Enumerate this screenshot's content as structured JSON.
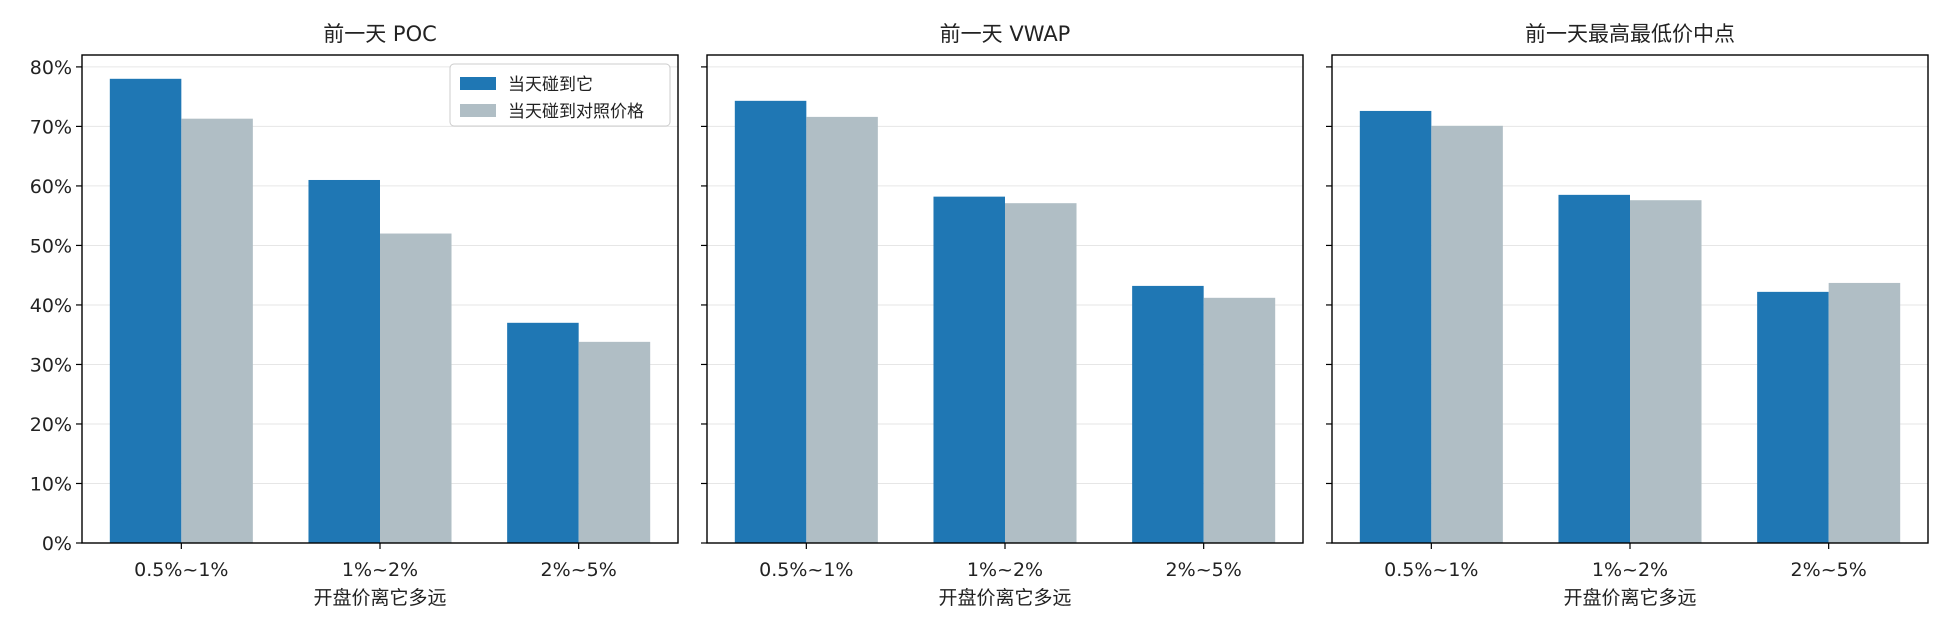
{
  "colors": {
    "series_0": "#1f77b4",
    "series_1": "#b0bec5",
    "grid": "#e6e6e6",
    "axis": "#000000"
  },
  "legend": {
    "placement": "upper right of first panel"
  },
  "chart_data": [
    {
      "type": "bar",
      "title": "前一天 POC",
      "xlabel": "开盘价离它多远",
      "ylabel": "",
      "categories": [
        "0.5%~1%",
        "1%~2%",
        "2%~5%"
      ],
      "series": [
        {
          "name": "当天碰到它",
          "values": [
            78,
            61,
            37
          ]
        },
        {
          "name": "当天碰到对照价格",
          "values": [
            71.3,
            52,
            33.8
          ]
        }
      ],
      "yticks": [
        "0%",
        "10%",
        "20%",
        "30%",
        "40%",
        "50%",
        "60%",
        "70%",
        "80%"
      ],
      "ylim": [
        0,
        82
      ],
      "grid": true,
      "show_legend": true
    },
    {
      "type": "bar",
      "title": "前一天 VWAP",
      "xlabel": "开盘价离它多远",
      "ylabel": "",
      "categories": [
        "0.5%~1%",
        "1%~2%",
        "2%~5%"
      ],
      "series": [
        {
          "name": "当天碰到它",
          "values": [
            74.3,
            58.2,
            43.2
          ]
        },
        {
          "name": "当天碰到对照价格",
          "values": [
            71.6,
            57.1,
            41.2
          ]
        }
      ],
      "ylim": [
        0,
        82
      ],
      "grid": true,
      "show_legend": false
    },
    {
      "type": "bar",
      "title": "前一天最高最低价中点",
      "xlabel": "开盘价离它多远",
      "ylabel": "",
      "categories": [
        "0.5%~1%",
        "1%~2%",
        "2%~5%"
      ],
      "series": [
        {
          "name": "当天碰到它",
          "values": [
            72.6,
            58.5,
            42.2
          ]
        },
        {
          "name": "当天碰到对照价格",
          "values": [
            70.1,
            57.6,
            43.7
          ]
        }
      ],
      "ylim": [
        0,
        82
      ],
      "grid": true,
      "show_legend": false
    }
  ]
}
